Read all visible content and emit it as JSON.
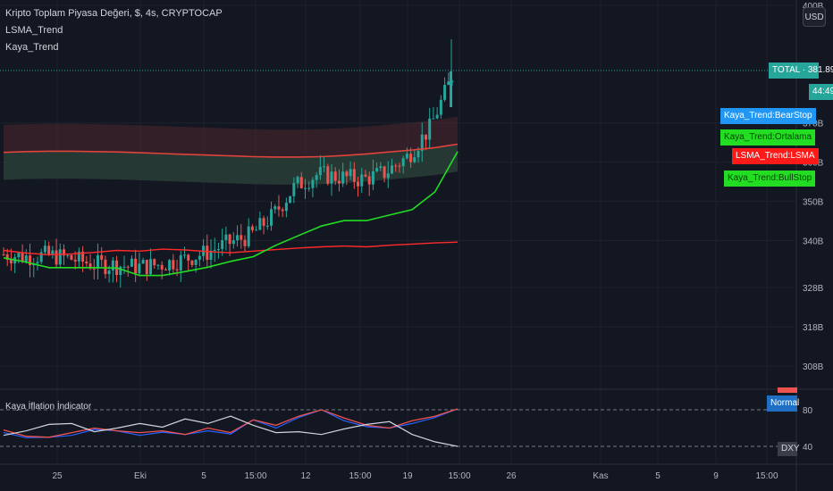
{
  "legend": {
    "symbol": "Kripto Toplam Piyasa Değeri, $, 4s, CRYPTOCAP",
    "line2": "LSMA_Trend",
    "line3": "Kaya_Trend"
  },
  "currency_button": "USD",
  "price_tags": {
    "total_label": "TOTAL · 381.893B",
    "countdown": "44:49",
    "bear_stop": "Kaya_Trend:BearStop",
    "ortalama": "Kaya_Trend:Ortalama",
    "lsma": "LSMA_Trend:LSMA",
    "bull_stop": "Kaya_Trend:BullStop"
  },
  "indicator": {
    "title": "Kaya İflation İndicator",
    "badge_normal": "Normal",
    "badge_dxy": "DXY",
    "levels": [
      80,
      40
    ]
  },
  "colors": {
    "background": "#131722",
    "candle_up": "#26a69a",
    "candle_down": "#ef5350",
    "lsma": "#ff2a2a",
    "bull": "#22dd22",
    "bear_tag": "#2196f3",
    "total_tag": "#26a69a",
    "normal_tag": "#1f6fc5"
  },
  "chart_data": [
    {
      "type": "line",
      "title": "Kripto Toplam Piyasa Değeri, $, 4s, CRYPTOCAP",
      "xlabel": "",
      "ylabel": "",
      "y_axis_ticks": [
        "400B",
        "370B",
        "360B",
        "350B",
        "340B",
        "328B",
        "318B",
        "308B"
      ],
      "y_tick_values": [
        400,
        370,
        360,
        350,
        340,
        328,
        318,
        308
      ],
      "x_axis_ticks": [
        "25",
        "Eki",
        "5",
        "15:00",
        "12",
        "15:00",
        "19",
        "15:00",
        "26",
        "Kas",
        "5",
        "9",
        "15:00"
      ],
      "grid": true,
      "last_value": 381.893,
      "series": [
        {
          "name": "LSMA_Trend:LSMA",
          "color": "#ff2a2a",
          "values": [
            337.5,
            336.8,
            336.4,
            336.6,
            337.0,
            337.5,
            337.3,
            337.8,
            337.6,
            337.2,
            336.9,
            337.3,
            337.7,
            338.1,
            338.4,
            338.6,
            338.4,
            338.8,
            339.1,
            339.4,
            339.6
          ]
        },
        {
          "name": "Kaya_Trend:Ortalama",
          "color": "#cc3333",
          "values": [
            362.5,
            362.7,
            362.8,
            362.8,
            362.7,
            362.6,
            362.4,
            362.2,
            362.0,
            361.8,
            361.6,
            361.4,
            361.3,
            361.3,
            361.4,
            361.7,
            362.1,
            362.6,
            363.1,
            363.7,
            364.6
          ]
        },
        {
          "name": "Kaya_Trend:BullStop",
          "color": "#22dd22",
          "values": [
            335.6,
            334.5,
            333.1,
            333.1,
            333.1,
            333.0,
            331.1,
            331.1,
            332.1,
            333.2,
            334.7,
            335.9,
            338.8,
            341.3,
            343.7,
            345.1,
            345.1,
            346.5,
            347.9,
            352.4,
            362.7
          ]
        },
        {
          "name": "Kaya_Trend:BearStop",
          "color": "#2196f3",
          "values": [
            336.5,
            335.9,
            336.3,
            335.4,
            334.0,
            333.7,
            333.3,
            333.9,
            335.2,
            336.8,
            339.3,
            341.3,
            346.3,
            353.9,
            356.9,
            356.2,
            355.6,
            357.3,
            361.4,
            368.7,
            381.9
          ]
        }
      ]
    },
    {
      "type": "line",
      "title": "Kaya İflation İndicator",
      "y_axis_ticks": [
        "80",
        "40"
      ],
      "y_tick_values": [
        80,
        40
      ],
      "series": [
        {
          "name": "Normal",
          "color": "#ef5350",
          "values": [
            58,
            51,
            50,
            55,
            60,
            57,
            55,
            57,
            53,
            60,
            55,
            69,
            63,
            73,
            80,
            71,
            63,
            60,
            68,
            73,
            81
          ]
        },
        {
          "name": "DXY",
          "color": "#d1d4dc",
          "values": [
            52,
            57,
            64,
            65,
            56,
            60,
            65,
            61,
            70,
            65,
            73,
            63,
            55,
            56,
            53,
            59,
            64,
            67,
            53,
            45,
            40
          ]
        }
      ]
    }
  ]
}
